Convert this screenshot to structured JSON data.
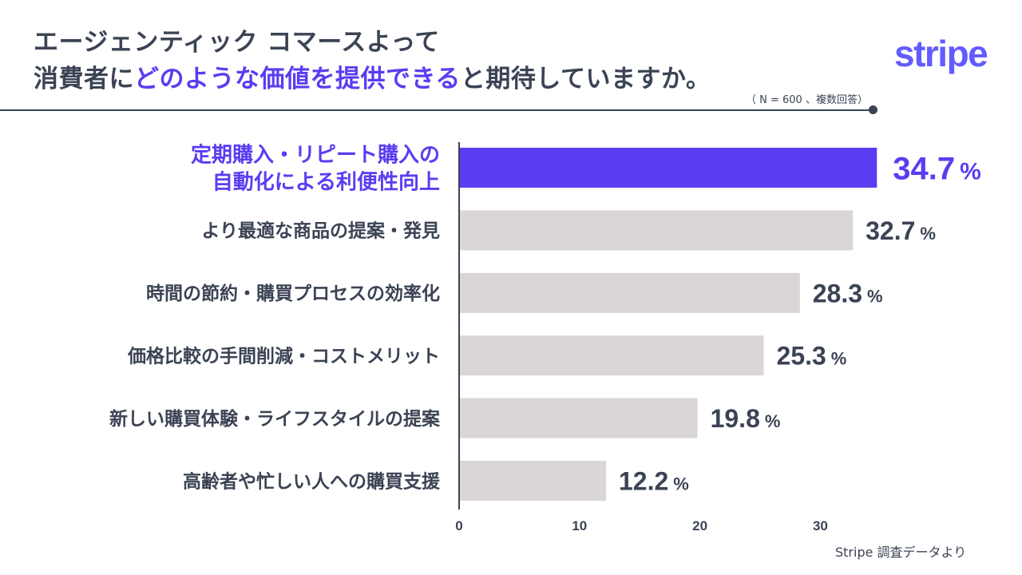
{
  "title": {
    "line1": "エージェンティック コマースよって",
    "line2_pre": "消費者に",
    "line2_highlight": "どのような価値を提供できる",
    "line2_post": "と期待していますか。"
  },
  "note": "（ N = 600 、複数回答）",
  "logo": "stripe",
  "footer": "Stripe 調査データより",
  "colors": {
    "accent": "#5b3cf2",
    "bar_default": "#dad5d6",
    "text": "#3b4354",
    "logo": "#635bff"
  },
  "chart_data": {
    "type": "bar",
    "orientation": "horizontal",
    "categories": [
      [
        "定期購入・リピート購入の",
        "自動化による利便性向上"
      ],
      [
        "より最適な商品の提案・発見"
      ],
      [
        "時間の節約・購買プロセスの効率化"
      ],
      [
        "価格比較の手間削減・コストメリット"
      ],
      [
        "新しい購買体験・ライフスタイルの提案"
      ],
      [
        "高齢者や忙しい人への購買支援"
      ]
    ],
    "values": [
      34.7,
      32.7,
      28.3,
      25.3,
      19.8,
      12.2
    ],
    "value_labels": [
      "34.7",
      "32.7",
      "28.3",
      "25.3",
      "19.8",
      "12.2"
    ],
    "unit": "%",
    "highlight_index": 0,
    "xlim": [
      0,
      35
    ],
    "xticks": [
      "0",
      "10",
      "20",
      "30"
    ],
    "xtick_values": [
      0,
      10,
      20,
      30
    ],
    "grid": false,
    "legend": "none"
  }
}
